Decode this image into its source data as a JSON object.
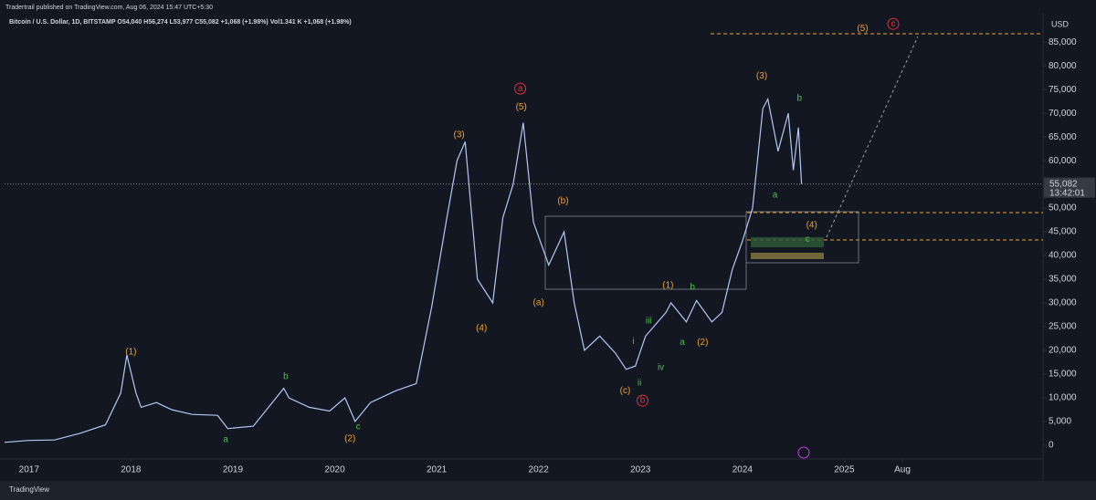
{
  "chart_data": {
    "type": "line",
    "published_by": "Tradertrail published on TradingView.com, Aug 06, 2024 15:47 UTC+5:30",
    "title": "Bitcoin / U.S. Dollar, 1D, BITSTAMP  O54,040 H56,274 L53,977 C55,082 +1,068 (+1.98%)  Vol1.341 K +1,068 (+1.98%)",
    "y_axis_label": "USD",
    "last_price_label": "55,082",
    "countdown": "13:42:01",
    "footer": "TradingView",
    "color": "#b7c6f5",
    "grid": false,
    "x": [
      2016.76,
      2017.0,
      2017.25,
      2017.5,
      2017.75,
      2017.9,
      2017.96,
      2018.05,
      2018.1,
      2018.25,
      2018.4,
      2018.6,
      2018.85,
      2018.95,
      2019.2,
      2019.35,
      2019.5,
      2019.55,
      2019.75,
      2019.95,
      2020.1,
      2020.2,
      2020.35,
      2020.6,
      2020.8,
      2020.95,
      2021.1,
      2021.2,
      2021.28,
      2021.4,
      2021.55,
      2021.65,
      2021.75,
      2021.85,
      2021.95,
      2022.1,
      2022.25,
      2022.35,
      2022.45,
      2022.6,
      2022.75,
      2022.86,
      2022.95,
      2023.05,
      2023.25,
      2023.3,
      2023.45,
      2023.55,
      2023.7,
      2023.8,
      2023.9,
      2024.0,
      2024.1,
      2024.2,
      2024.25,
      2024.35,
      2024.45,
      2024.5,
      2024.55,
      2024.58
    ],
    "values": [
      600,
      1000,
      1100,
      2500,
      4300,
      11000,
      19000,
      11000,
      8000,
      9000,
      7500,
      6500,
      6300,
      3500,
      4000,
      8000,
      12000,
      10000,
      8000,
      7200,
      10000,
      5000,
      9000,
      11500,
      13000,
      29000,
      48000,
      60000,
      64000,
      35000,
      30000,
      48000,
      55000,
      68000,
      47000,
      38000,
      45000,
      30000,
      20000,
      23000,
      19500,
      16000,
      16700,
      23000,
      28000,
      30000,
      26000,
      30500,
      26000,
      28000,
      37000,
      43000,
      50000,
      71000,
      73000,
      62000,
      70000,
      58000,
      67000,
      55082
    ],
    "xlim": [
      2016.76,
      2026.95
    ],
    "xticks": [
      2017,
      2018,
      2019,
      2020,
      2021,
      2022,
      2023,
      2024,
      2025,
      {
        "value": 2025.57,
        "label": "Aug"
      }
    ],
    "ylim": [
      -2900,
      91200
    ],
    "yticks": [
      0,
      {
        "value": 5000,
        "label": "5,000"
      },
      {
        "value": 10000,
        "label": "10,000"
      },
      {
        "value": 15000,
        "label": "15,000"
      },
      {
        "value": 20000,
        "label": "20,000"
      },
      {
        "value": 25000,
        "label": "25,000"
      },
      {
        "value": 30000,
        "label": "30,000"
      },
      {
        "value": 35000,
        "label": "35,000"
      },
      {
        "value": 40000,
        "label": "40,000"
      },
      {
        "value": 45000,
        "label": "45,000"
      },
      {
        "value": 50000,
        "label": "50,000"
      },
      {
        "value": 55000,
        "label": "55,000"
      },
      {
        "value": 60000,
        "label": "60,000"
      },
      {
        "value": 65000,
        "label": "65,000"
      },
      {
        "value": 70000,
        "label": "70,000"
      },
      {
        "value": 75000,
        "label": "75,000"
      },
      {
        "value": 80000,
        "label": "80,000"
      },
      {
        "value": 85000,
        "label": "85,000"
      }
    ],
    "annotations": [
      {
        "text": "(1)",
        "x": 2018.0,
        "y": 19600,
        "color": "#f0a030"
      },
      {
        "text": "a",
        "x": 2018.93,
        "y": 1150,
        "color": "#4cbf4c"
      },
      {
        "text": "b",
        "x": 2019.52,
        "y": 14400,
        "color": "#4cbf4c"
      },
      {
        "text": "c",
        "x": 2020.23,
        "y": 3850,
        "color": "#4cbf4c"
      },
      {
        "text": "(2)",
        "x": 2020.15,
        "y": 1350,
        "color": "#f0a030"
      },
      {
        "text": "(3)",
        "x": 2021.22,
        "y": 65400,
        "color": "#f0a030"
      },
      {
        "text": "(4)",
        "x": 2021.44,
        "y": 24600,
        "color": "#f0a030"
      },
      {
        "text": "a",
        "x": 2021.82,
        "y": 75200,
        "color": "#e0303a",
        "circle": true
      },
      {
        "text": "(5)",
        "x": 2021.83,
        "y": 71300,
        "color": "#f0a030"
      },
      {
        "text": "(b)",
        "x": 2022.24,
        "y": 51500,
        "color": "#f0a030"
      },
      {
        "text": "(a)",
        "x": 2022.0,
        "y": 30000,
        "color": "#f0a030"
      },
      {
        "text": "(c)",
        "x": 2022.85,
        "y": 11500,
        "color": "#f0a030"
      },
      {
        "text": "b",
        "x": 2023.02,
        "y": 9400,
        "color": "#e0303a",
        "circle": true
      },
      {
        "text": "i",
        "x": 2022.93,
        "y": 21900,
        "color": "#4cbf4c"
      },
      {
        "text": "ii",
        "x": 2022.99,
        "y": 13100,
        "color": "#4cbf4c"
      },
      {
        "text": "iii",
        "x": 2023.08,
        "y": 26150,
        "color": "#4cbf4c"
      },
      {
        "text": "iv",
        "x": 2023.2,
        "y": 16350,
        "color": "#4cbf4c"
      },
      {
        "text": "(1)",
        "x": 2023.27,
        "y": 33650,
        "color": "#f0a030"
      },
      {
        "text": "a",
        "x": 2023.41,
        "y": 21700,
        "color": "#4cbf4c"
      },
      {
        "text": "b",
        "x": 2023.51,
        "y": 33300,
        "color": "#4cbf4c"
      },
      {
        "text": "(2)",
        "x": 2023.61,
        "y": 21700,
        "color": "#f0a030"
      },
      {
        "text": "(3)",
        "x": 2024.19,
        "y": 77900,
        "color": "#f0a030"
      },
      {
        "text": "b",
        "x": 2024.56,
        "y": 73100,
        "color": "#4cbf4c"
      },
      {
        "text": "a",
        "x": 2024.32,
        "y": 52700,
        "color": "#4cbf4c"
      },
      {
        "text": "(4)",
        "x": 2024.68,
        "y": 46350,
        "color": "#f0a030"
      },
      {
        "text": "c",
        "x": 2024.64,
        "y": 43450,
        "color": "#4cbf4c"
      },
      {
        "text": "(5)",
        "x": 2025.18,
        "y": 87900,
        "color": "#f0a030"
      },
      {
        "text": "c",
        "x": 2025.48,
        "y": 88850,
        "color": "#e0303a",
        "circle": true
      }
    ]
  }
}
